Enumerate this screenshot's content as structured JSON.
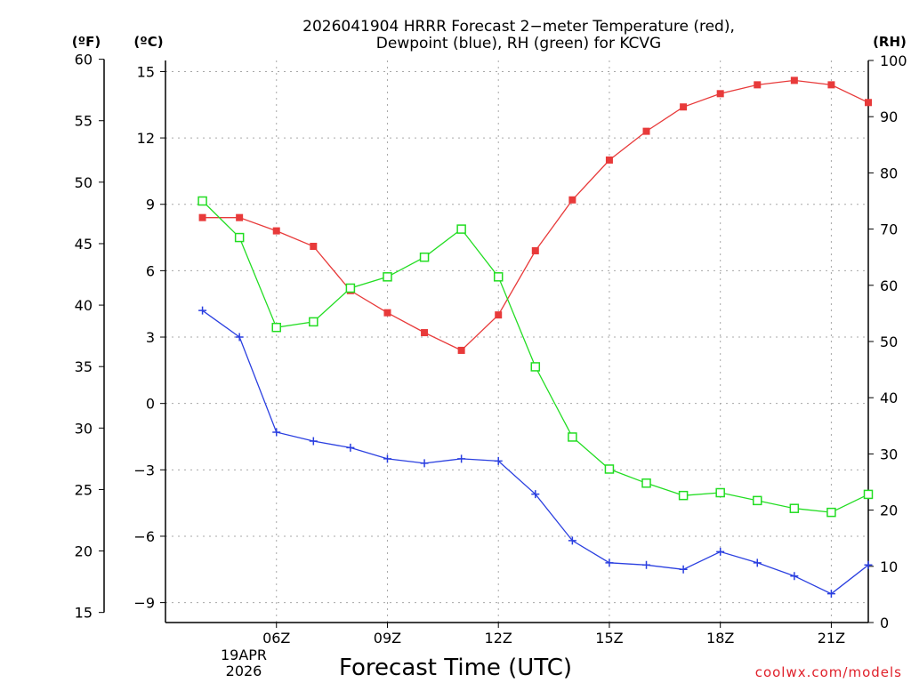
{
  "chart_data": {
    "type": "line",
    "title_lines": [
      "2026041904 HRRR Forecast 2−meter Temperature (red),",
      "Dewpoint (blue), RH (green) for KCVG"
    ],
    "xlabel": "Forecast Time (UTC)",
    "date_label": [
      "19APR",
      "2026"
    ],
    "credit": "coolwx.com/models",
    "units": {
      "fahrenheit": "(ºF)",
      "celsius": "(ºC)",
      "rh": "(RH)"
    },
    "x_range_hours": [
      3,
      22
    ],
    "x_ticks": [
      {
        "hour": 6,
        "label": "06Z"
      },
      {
        "hour": 9,
        "label": "09Z"
      },
      {
        "hour": 12,
        "label": "12Z"
      },
      {
        "hour": 15,
        "label": "15Z"
      },
      {
        "hour": 18,
        "label": "18Z"
      },
      {
        "hour": 21,
        "label": "21Z"
      }
    ],
    "celsius_axis": {
      "range": [
        -9.9,
        15.5
      ],
      "ticks": [
        15,
        12,
        9,
        6,
        3,
        0,
        -3,
        -6,
        -9
      ],
      "tick_labels": [
        "15",
        "12",
        "9",
        "6",
        "3",
        "0",
        "−3",
        "−6",
        "−9"
      ]
    },
    "fahrenheit_axis": {
      "ticks": [
        60,
        55,
        50,
        45,
        40,
        35,
        30,
        25,
        20,
        15
      ],
      "tick_labels": [
        "60",
        "55",
        "50",
        "45",
        "40",
        "35",
        "30",
        "25",
        "20",
        "15"
      ]
    },
    "rh_axis": {
      "range": [
        0,
        100
      ],
      "ticks": [
        100,
        90,
        80,
        70,
        60,
        50,
        40,
        30,
        20,
        10,
        0
      ],
      "tick_labels": [
        "100",
        "90",
        "80",
        "70",
        "60",
        "50",
        "40",
        "30",
        "20",
        "10",
        "0"
      ]
    },
    "grid": true,
    "x_hours": [
      4,
      5,
      6,
      7,
      8,
      9,
      10,
      11,
      12,
      13,
      14,
      15,
      16,
      17,
      18,
      19,
      20,
      21,
      22
    ],
    "series": [
      {
        "name": "Temperature",
        "color": "#e83a3a",
        "marker": "filled-square",
        "axis": "celsius",
        "values": [
          8.4,
          8.4,
          7.8,
          7.1,
          5.1,
          4.1,
          3.2,
          2.4,
          4.0,
          6.9,
          9.2,
          11.0,
          12.3,
          13.4,
          14.0,
          14.4,
          14.6,
          14.4,
          13.6
        ]
      },
      {
        "name": "Dewpoint",
        "color": "#2a3fe0",
        "marker": "plus",
        "axis": "celsius",
        "values": [
          4.2,
          3.0,
          -1.3,
          -1.7,
          -2.0,
          -2.5,
          -2.7,
          -2.5,
          -2.6,
          -4.1,
          -6.2,
          -7.2,
          -7.3,
          -7.5,
          -6.7,
          -7.2,
          -7.8,
          -8.6,
          -7.3
        ]
      },
      {
        "name": "RH",
        "color": "#22dd22",
        "marker": "open-square",
        "axis": "rh",
        "values": [
          75,
          68.5,
          52.5,
          53.5,
          59.5,
          61.5,
          65,
          70,
          61.5,
          45.5,
          33,
          27.3,
          24.8,
          22.6,
          23.1,
          21.7,
          20.3,
          19.6,
          22.8
        ]
      }
    ]
  }
}
